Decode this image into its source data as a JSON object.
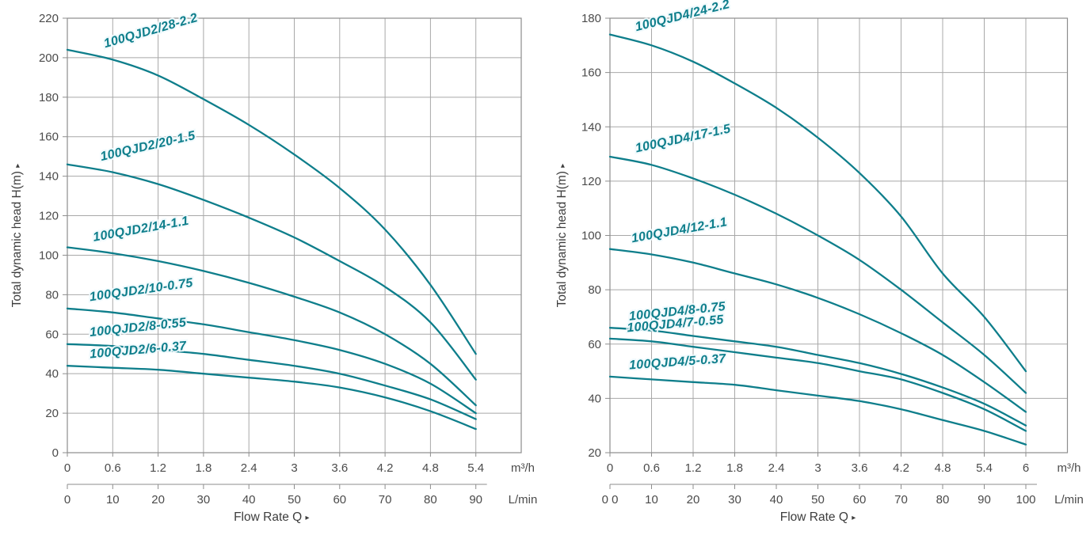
{
  "colors": {
    "curve": "#0e7e8b",
    "grid": "#a8a8a8",
    "frame": "#8d8d8d",
    "axis_text": "#4b4b4b",
    "title_text": "#3d3d3d"
  },
  "chart_data": [
    {
      "type": "line",
      "id": "100QJD2",
      "ylabel": "Total dynamic head H(m)",
      "xlabel": "Flow Rate Q",
      "ylim": [
        0,
        220
      ],
      "y_tick_step": 20,
      "y_ticks": [
        "0",
        "20",
        "40",
        "60",
        "80",
        "100",
        "120",
        "140",
        "160",
        "180",
        "200",
        "220"
      ],
      "grid": true,
      "legend": "inline-curve-labels",
      "line_color": "#0e7e8b",
      "x_primary": {
        "unit": "m³/h",
        "tick_values": [
          0,
          0.6,
          1.2,
          1.8,
          2.4,
          3,
          3.6,
          4.2,
          4.8,
          5.4
        ],
        "tick_labels": [
          "0",
          "0.6",
          "1.2",
          "1.8",
          "2.4",
          "3",
          "3.6",
          "4.2",
          "4.8",
          "5.4"
        ]
      },
      "x_secondary": {
        "unit": "L/min",
        "tick_labels": [
          "0",
          "10",
          "20",
          "30",
          "40",
          "50",
          "60",
          "70",
          "80",
          "90"
        ]
      },
      "x": [
        0,
        0.6,
        1.2,
        1.8,
        2.4,
        3,
        3.6,
        4.2,
        4.8,
        5.4
      ],
      "series": [
        {
          "name": "100QJD2/28-2.2",
          "values": [
            204,
            199,
            191,
            179,
            166,
            151,
            134,
            113,
            85,
            50
          ],
          "label": {
            "q": 0.5,
            "angle": -16,
            "dy": -13
          }
        },
        {
          "name": "100QJD2/20-1.5",
          "values": [
            146,
            142,
            136,
            128,
            119,
            109,
            97,
            84,
            66,
            37
          ],
          "label": {
            "q": 0.45,
            "angle": -13,
            "dy": -12
          }
        },
        {
          "name": "100QJD2/14-1.1",
          "values": [
            104,
            101,
            97,
            92,
            86,
            79,
            71,
            60,
            45,
            24
          ],
          "label": {
            "q": 0.35,
            "angle": -10,
            "dy": -12
          }
        },
        {
          "name": "100QJD2/10-0.75",
          "values": [
            73,
            71,
            68,
            65,
            61,
            57,
            52,
            45,
            35,
            20
          ],
          "label": {
            "q": 0.3,
            "angle": -8,
            "dy": -12
          }
        },
        {
          "name": "100QJD2/8-0.55",
          "values": [
            55,
            54,
            52,
            50,
            47,
            44,
            40,
            34,
            27,
            17
          ],
          "label": {
            "q": 0.3,
            "angle": -6,
            "dy": -11
          }
        },
        {
          "name": "100QJD2/6-0.37",
          "values": [
            44,
            43,
            42,
            40,
            38,
            36,
            33,
            28,
            21,
            12
          ],
          "label": {
            "q": 0.3,
            "angle": -5,
            "dy": -11
          }
        }
      ]
    },
    {
      "type": "line",
      "id": "100QJD4",
      "ylabel": "Total dynamic head H(m)",
      "xlabel": "Flow Rate Q",
      "ylim": [
        20,
        180
      ],
      "y_tick_step": 20,
      "y_ticks": [
        "20",
        "40",
        "60",
        "80",
        "100",
        "120",
        "140",
        "160",
        "180"
      ],
      "grid": true,
      "legend": "inline-curve-labels",
      "line_color": "#0e7e8b",
      "x_primary": {
        "unit": "m³/h",
        "tick_values": [
          0,
          0.6,
          1.2,
          1.8,
          2.4,
          3,
          3.6,
          4.2,
          4.8,
          5.4,
          6
        ],
        "tick_labels": [
          "0",
          "0.6",
          "1.2",
          "1.8",
          "2.4",
          "3",
          "3.6",
          "4.2",
          "4.8",
          "5.4",
          "6"
        ]
      },
      "x_secondary": {
        "unit": "L/min",
        "tick_labels": [
          "0 0",
          "10",
          "20",
          "30",
          "40",
          "50",
          "60",
          "70",
          "80",
          "90",
          "100"
        ]
      },
      "x": [
        0,
        0.6,
        1.2,
        1.8,
        2.4,
        3,
        3.6,
        4.2,
        4.8,
        5.4,
        6
      ],
      "series": [
        {
          "name": "100QJD4/24-2.2",
          "values": [
            174,
            170,
            164,
            156,
            147,
            136,
            123,
            107,
            86,
            70,
            50
          ],
          "label": {
            "q": 0.38,
            "angle": -14,
            "dy": -13
          }
        },
        {
          "name": "100QJD4/17-1.5",
          "values": [
            129,
            126,
            121,
            115,
            108,
            100,
            91,
            80,
            68,
            56,
            42
          ],
          "label": {
            "q": 0.38,
            "angle": -12,
            "dy": -12
          }
        },
        {
          "name": "100QJD4/12-1.1",
          "values": [
            95,
            93,
            90,
            86,
            82,
            77,
            71,
            64,
            56,
            46,
            35
          ],
          "label": {
            "q": 0.32,
            "angle": -10,
            "dy": -12
          }
        },
        {
          "name": "100QJD4/8-0.75",
          "values": [
            66,
            65,
            63,
            61,
            59,
            56,
            53,
            49,
            44,
            38,
            30
          ],
          "label": {
            "q": 0.28,
            "angle": -6,
            "dy": -11
          }
        },
        {
          "name": "100QJD4/7-0.55",
          "values": [
            62,
            61,
            59,
            57,
            55,
            53,
            50,
            47,
            42,
            36,
            28
          ],
          "label": {
            "q": 0.25,
            "angle": -5,
            "dy": -10
          }
        },
        {
          "name": "100QJD4/5-0.37",
          "values": [
            48,
            47,
            46,
            45,
            43,
            41,
            39,
            36,
            32,
            28,
            23
          ],
          "label": {
            "q": 0.28,
            "angle": -4,
            "dy": -11
          }
        }
      ]
    }
  ]
}
